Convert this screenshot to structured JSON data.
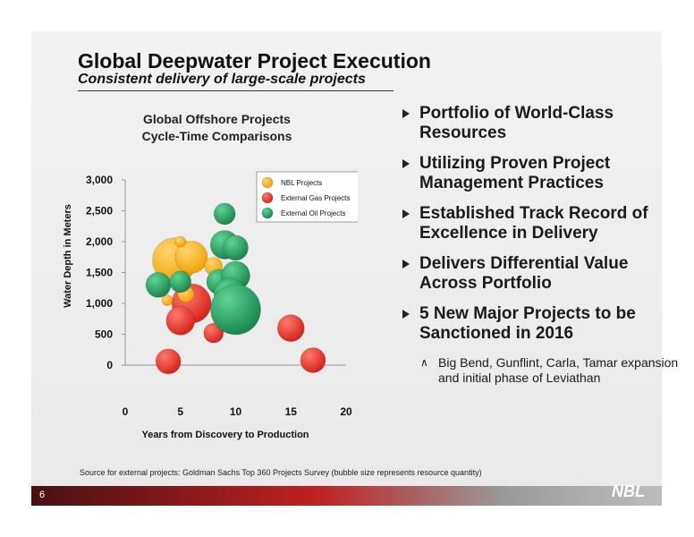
{
  "slide": {
    "title": "Global Deepwater Project Execution",
    "subtitle": "Consistent delivery of large-scale projects",
    "page_number": "6",
    "logo_text": "NBL",
    "source": "Source for external projects: Goldman Sachs Top 360 Projects Survey (bubble size represents resource quantity)"
  },
  "bullets": [
    "Portfolio of World-Class Resources",
    "Utilizing Proven Project Management Practices",
    "Established Track Record of Excellence in Delivery",
    "Delivers Differential Value Across Portfolio",
    "5 New Major Projects to be Sanctioned in 2016"
  ],
  "sub_bullet": "Big Bend, Gunflint, Carla, Tamar expansion and initial phase of Leviathan",
  "colors": {
    "nbl": "#f2a000",
    "gas": "#e02820",
    "oil": "#1f9a5a"
  },
  "chart_data": {
    "type": "scatter",
    "title_line1": "Global Offshore Projects",
    "title_line2": "Cycle-Time Comparisons",
    "xlabel": "Years from Discovery to Production",
    "ylabel": "Water Depth in Meters",
    "xlim": [
      0,
      20
    ],
    "ylim": [
      0,
      3000
    ],
    "x_ticks": [
      "0",
      "5",
      "10",
      "15",
      "20"
    ],
    "y_ticks": [
      "0",
      "500",
      "1,000",
      "1,500",
      "2,000",
      "2,500",
      "3,000"
    ],
    "legend_position": "top-right",
    "grid": false,
    "series": [
      {
        "name": "NBL Projects",
        "points": [
          {
            "x": 4.5,
            "y": 1700,
            "r": 25
          },
          {
            "x": 6.0,
            "y": 1750,
            "r": 18
          },
          {
            "x": 5.0,
            "y": 2000,
            "r": 6
          },
          {
            "x": 3.8,
            "y": 1050,
            "r": 6
          },
          {
            "x": 5.5,
            "y": 1150,
            "r": 9
          },
          {
            "x": 8.0,
            "y": 1600,
            "r": 10
          }
        ]
      },
      {
        "name": "External Gas Projects",
        "points": [
          {
            "x": 6.0,
            "y": 1000,
            "r": 22
          },
          {
            "x": 5.0,
            "y": 720,
            "r": 16
          },
          {
            "x": 8.0,
            "y": 520,
            "r": 11
          },
          {
            "x": 3.9,
            "y": 60,
            "r": 14
          },
          {
            "x": 15.0,
            "y": 600,
            "r": 15
          },
          {
            "x": 17.0,
            "y": 80,
            "r": 14
          }
        ]
      },
      {
        "name": "External Oil Projects",
        "points": [
          {
            "x": 9.0,
            "y": 2450,
            "r": 12
          },
          {
            "x": 9.0,
            "y": 1950,
            "r": 16
          },
          {
            "x": 10.0,
            "y": 1900,
            "r": 14
          },
          {
            "x": 3.0,
            "y": 1300,
            "r": 14
          },
          {
            "x": 5.0,
            "y": 1350,
            "r": 12
          },
          {
            "x": 8.5,
            "y": 1350,
            "r": 14
          },
          {
            "x": 10.0,
            "y": 1450,
            "r": 16
          },
          {
            "x": 9.5,
            "y": 1150,
            "r": 18
          },
          {
            "x": 10.0,
            "y": 900,
            "r": 28
          }
        ]
      }
    ]
  }
}
